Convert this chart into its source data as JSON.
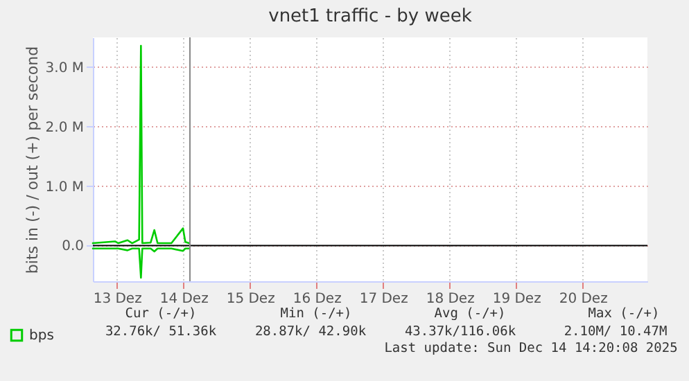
{
  "chart_data": {
    "type": "line",
    "title": "vnet1 traffic - by week",
    "ylabel": "bits in (-) / out (+) per second",
    "x": [
      "2025-12-13T03:20",
      "2025-12-13T11:20",
      "2025-12-13T12:30",
      "2025-12-13T15:50",
      "2025-12-13T17:30",
      "2025-12-13T20:00",
      "2025-12-13T20:40",
      "2025-12-13T21:10",
      "2025-12-14T00:10",
      "2025-12-14T01:30",
      "2025-12-14T02:40",
      "2025-12-14T07:40",
      "2025-12-14T11:50",
      "2025-12-14T12:40",
      "2025-12-14T14:00"
    ],
    "series": [
      {
        "name": "bps",
        "color": "#00cc00",
        "values": [
          0.04,
          0.07,
          0.04,
          0.09,
          0.04,
          0.1,
          3.36,
          0.04,
          0.05,
          0.26,
          0.04,
          0.04,
          0.29,
          0.06,
          0.04
        ]
      },
      {
        "color": "#00cc00",
        "values": [
          -0.05,
          -0.05,
          -0.05,
          -0.08,
          -0.05,
          -0.05,
          -0.54,
          -0.05,
          -0.05,
          -0.1,
          -0.05,
          -0.05,
          -0.09,
          -0.05,
          -0.05
        ]
      }
    ],
    "xlim": [
      "2025-12-13T03:20",
      "2025-12-21T11:20"
    ],
    "xticks": [
      {
        "value": "2025-12-13T12:00",
        "label": "13 Dez"
      },
      {
        "value": "2025-12-14T12:00",
        "label": "14 Dez"
      },
      {
        "value": "2025-12-15T12:00",
        "label": "15 Dez"
      },
      {
        "value": "2025-12-16T12:00",
        "label": "16 Dez"
      },
      {
        "value": "2025-12-17T12:00",
        "label": "17 Dez"
      },
      {
        "value": "2025-12-18T12:00",
        "label": "18 Dez"
      },
      {
        "value": "2025-12-19T12:00",
        "label": "19 Dez"
      },
      {
        "value": "2025-12-20T12:00",
        "label": "20 Dez"
      }
    ],
    "ylim": [
      -0.6,
      3.5
    ],
    "yticks": [
      {
        "value": 0,
        "label": "0.0"
      },
      {
        "value": 1,
        "label": "1.0 M"
      },
      {
        "value": 2,
        "label": "2.0 M"
      },
      {
        "value": 3,
        "label": "3.0 M"
      }
    ],
    "grid": true,
    "legend": "bottom left",
    "marker": "none",
    "line_style": "solid",
    "ref_lines": [
      {
        "axis": "y",
        "value": 0,
        "color": "#000000"
      },
      {
        "axis": "x",
        "value": "2025-12-14T14:20",
        "color": "#888888"
      }
    ],
    "annotations": [
      "Cur (-/+)",
      "Min (-/+)",
      "Avg (-/+)",
      "Max (-/+)",
      "32.76k/ 51.36k",
      "28.87k/ 42.90k",
      "43.37k/116.06k",
      "2.10M/ 10.47M",
      "Last update: Sun Dec 14 14:20:08 2025"
    ]
  }
}
